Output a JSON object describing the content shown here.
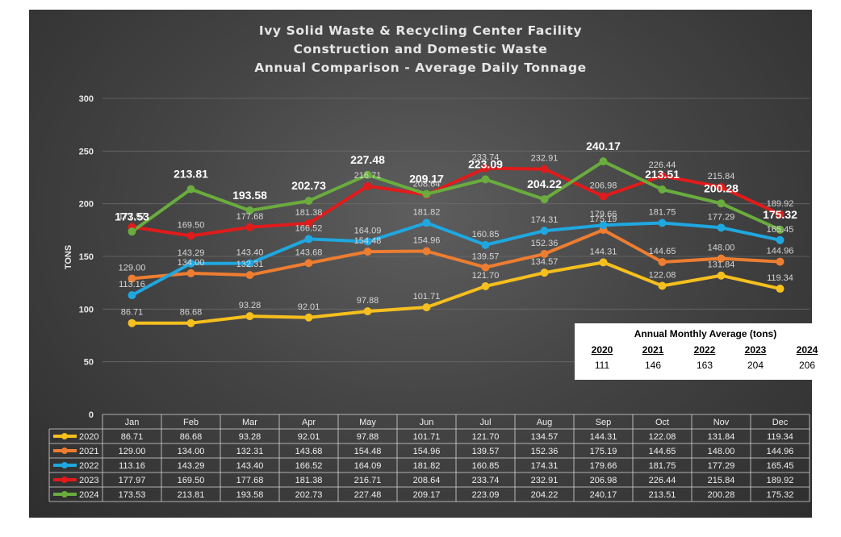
{
  "chart_data": {
    "type": "line",
    "title_lines": [
      "Ivy Solid Waste & Recycling Center Facility",
      "Construction and Domestic Waste",
      "Annual Comparison - Average Daily Tonnage"
    ],
    "ylabel": "TONS",
    "xlabel": "",
    "ylim": [
      0,
      300
    ],
    "yticks": [
      0,
      50,
      100,
      150,
      200,
      250,
      300
    ],
    "grid": true,
    "categories": [
      "Jan",
      "Feb",
      "Mar",
      "Apr",
      "May",
      "Jun",
      "Jul",
      "Aug",
      "Sep",
      "Oct",
      "Nov",
      "Dec"
    ],
    "series": [
      {
        "name": "2020",
        "color": "#f5bf1e",
        "values": [
          86.71,
          86.68,
          93.28,
          92.01,
          97.88,
          101.71,
          121.7,
          134.57,
          144.31,
          122.08,
          131.84,
          119.34
        ]
      },
      {
        "name": "2021",
        "color": "#ed7d31",
        "values": [
          129.0,
          134.0,
          132.31,
          143.68,
          154.48,
          154.96,
          139.57,
          152.36,
          175.19,
          144.65,
          148.0,
          144.96
        ]
      },
      {
        "name": "2022",
        "color": "#1fa7e0",
        "values": [
          113.16,
          143.29,
          143.4,
          166.52,
          164.09,
          181.82,
          160.85,
          174.31,
          179.66,
          181.75,
          177.29,
          165.45
        ]
      },
      {
        "name": "2023",
        "color": "#e01b1b",
        "values": [
          177.97,
          169.5,
          177.68,
          181.38,
          216.71,
          208.64,
          233.74,
          232.91,
          206.98,
          226.44,
          215.84,
          189.92
        ]
      },
      {
        "name": "2024",
        "color": "#6aac3e",
        "values": [
          173.53,
          213.81,
          193.58,
          202.73,
          227.48,
          209.17,
          223.09,
          204.22,
          240.17,
          213.51,
          200.28,
          175.32
        ]
      }
    ],
    "data_table": {
      "rows": [
        {
          "series": "2020",
          "cells": [
            "86.71",
            "86.68",
            "93.28",
            "92.01",
            "97.88",
            "101.71",
            "121.70",
            "134.57",
            "144.31",
            "122.08",
            "131.84",
            "119.34"
          ]
        },
        {
          "series": "2021",
          "cells": [
            "129.00",
            "134.00",
            "132.31",
            "143.68",
            "154.48",
            "154.96",
            "139.57",
            "152.36",
            "175.19",
            "144.65",
            "148.00",
            "144.96"
          ]
        },
        {
          "series": "2022",
          "cells": [
            "113.16",
            "143.29",
            "143.40",
            "166.52",
            "164.09",
            "181.82",
            "160.85",
            "174.31",
            "179.66",
            "181.75",
            "177.29",
            "165.45"
          ]
        },
        {
          "series": "2023",
          "cells": [
            "177.97",
            "169.50",
            "177.68",
            "181.38",
            "216.71",
            "208.64",
            "233.74",
            "232.91",
            "206.98",
            "226.44",
            "215.84",
            "189.92"
          ]
        },
        {
          "series": "2024",
          "cells": [
            "173.53",
            "213.81",
            "193.58",
            "202.73",
            "227.48",
            "209.17",
            "223.09",
            "204.22",
            "240.17",
            "213.51",
            "200.28",
            "175.32"
          ]
        }
      ]
    },
    "annual_average_box": {
      "title": "Annual Monthly Average (tons)",
      "years": [
        "2020",
        "2021",
        "2022",
        "2023",
        "2024"
      ],
      "values": [
        "111",
        "146",
        "163",
        "204",
        "206"
      ]
    }
  }
}
